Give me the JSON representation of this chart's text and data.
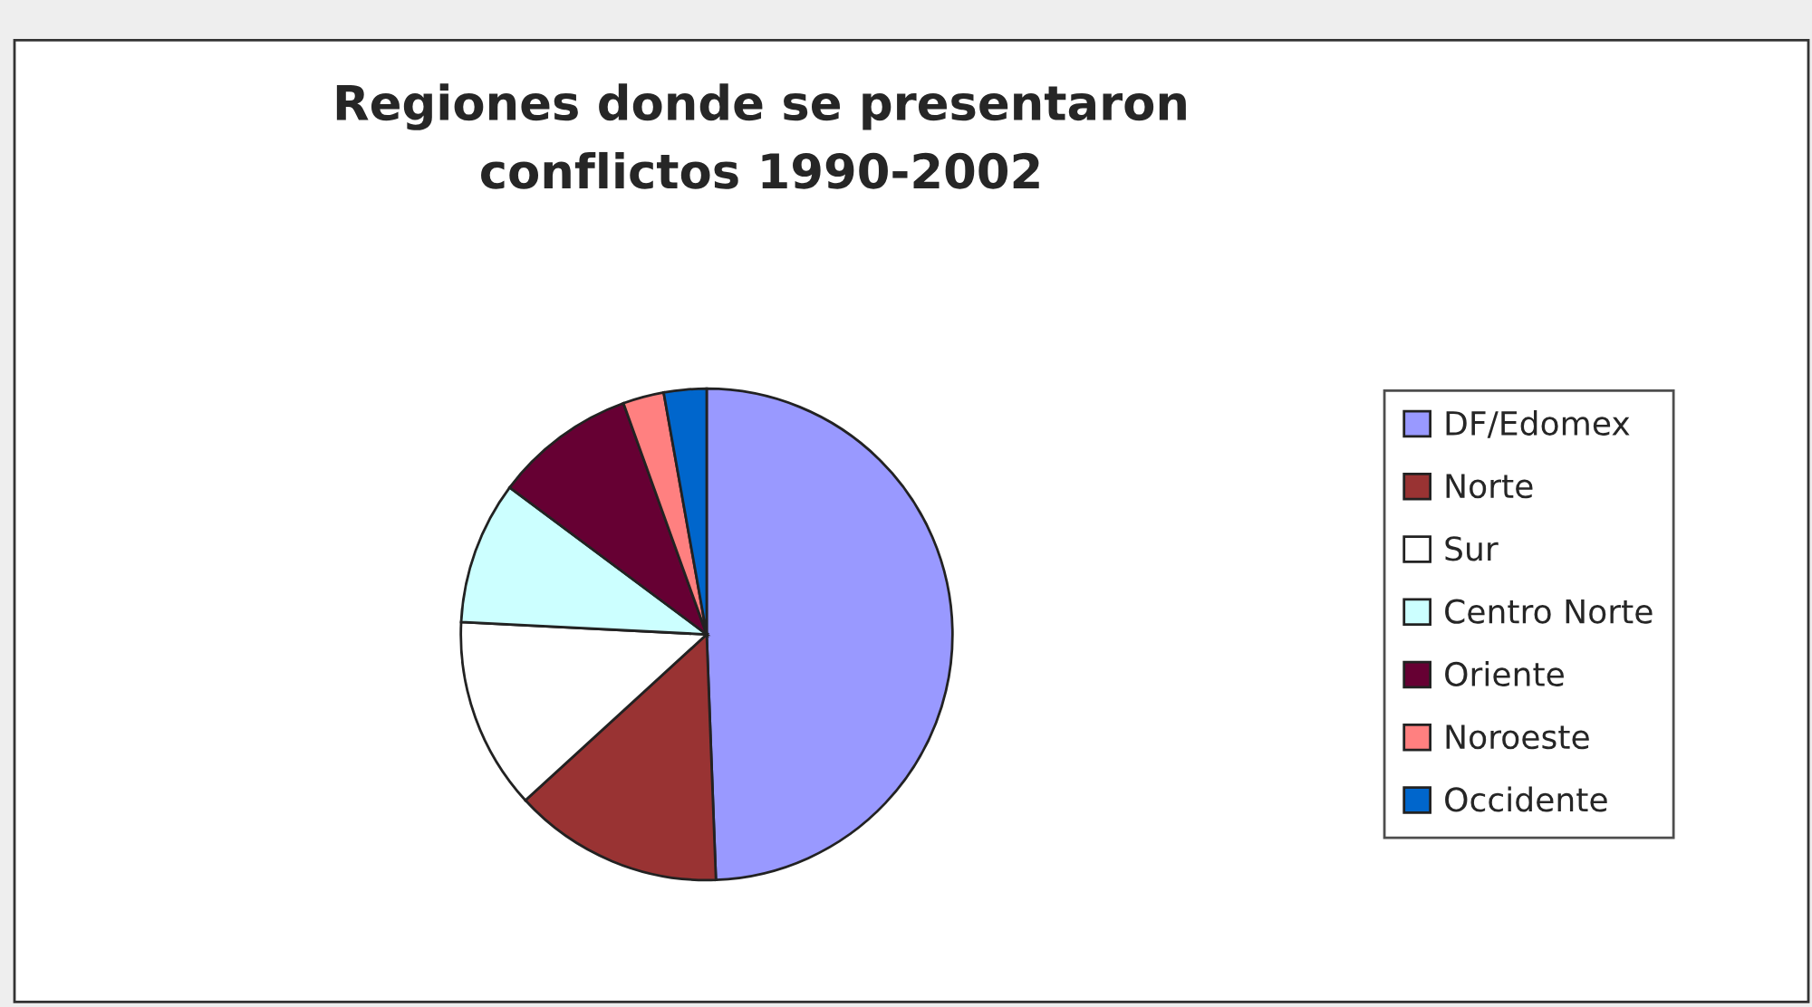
{
  "chart_data": {
    "type": "pie",
    "title": "Regiones donde se presentaron\nconflictos 1990-2002",
    "categories": [
      "DF/Edomex",
      "Norte",
      "Sur",
      "Centro Norte",
      "Oriente",
      "Noroeste",
      "Occidente"
    ],
    "values": [
      49.4,
      13.8,
      12.6,
      9.4,
      9.3,
      2.7,
      2.8
    ],
    "colors": [
      "#9999ff",
      "#993333",
      "#ffffff",
      "#ccffff",
      "#660033",
      "#ff8080",
      "#0066cc"
    ],
    "legend": "right"
  }
}
